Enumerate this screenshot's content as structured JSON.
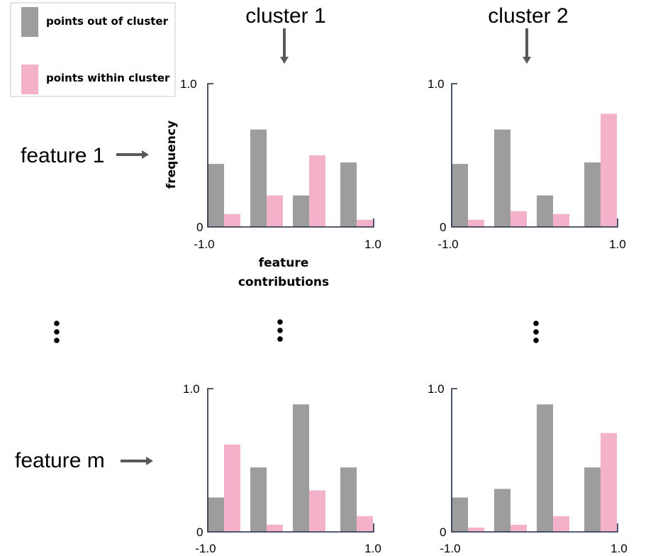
{
  "colors": {
    "out": "#9d9d9d",
    "within": "#f4b1ca"
  },
  "legend": {
    "out_label": "points out of cluster",
    "within_label": "points within cluster"
  },
  "columns": [
    "cluster 1",
    "cluster 2"
  ],
  "rows": [
    "feature 1",
    "feature m"
  ],
  "axis": {
    "ylabel": "frequency",
    "xlabel_line1": "feature",
    "xlabel_line2": "contributions"
  },
  "ellipsis_note": "⋮",
  "chart_data": [
    {
      "type": "bar",
      "row": "feature 1",
      "column": "cluster 1",
      "xlabel": "feature contributions",
      "ylabel": "frequency",
      "xlim": [
        -1.0,
        1.0
      ],
      "ylim": [
        0,
        1.0
      ],
      "x_tick_labels": [
        "-1.0",
        "1.0"
      ],
      "y_tick_labels": [
        "0",
        "1.0"
      ],
      "series": [
        {
          "name": "points out of cluster",
          "values": [
            0.44,
            0.68,
            0.22,
            0.45
          ]
        },
        {
          "name": "points within cluster",
          "values": [
            0.09,
            0.22,
            0.5,
            0.05
          ]
        }
      ]
    },
    {
      "type": "bar",
      "row": "feature 1",
      "column": "cluster 2",
      "xlim": [
        -1.0,
        1.0
      ],
      "ylim": [
        0,
        1.0
      ],
      "x_tick_labels": [
        "-1.0",
        "1.0"
      ],
      "y_tick_labels": [
        "0",
        "1.0"
      ],
      "series": [
        {
          "name": "points out of cluster",
          "values": [
            0.44,
            0.68,
            0.22,
            0.45
          ]
        },
        {
          "name": "points within cluster",
          "values": [
            0.05,
            0.11,
            0.09,
            0.79
          ]
        }
      ]
    },
    {
      "type": "bar",
      "row": "feature m",
      "column": "cluster 1",
      "xlim": [
        -1.0,
        1.0
      ],
      "ylim": [
        0,
        1.0
      ],
      "x_tick_labels": [
        "-1.0",
        "1.0"
      ],
      "y_tick_labels": [
        "0",
        "1.0"
      ],
      "series": [
        {
          "name": "points out of cluster",
          "values": [
            0.24,
            0.45,
            0.89,
            0.45
          ]
        },
        {
          "name": "points within cluster",
          "values": [
            0.61,
            0.05,
            0.29,
            0.11
          ]
        }
      ]
    },
    {
      "type": "bar",
      "row": "feature m",
      "column": "cluster 2",
      "xlim": [
        -1.0,
        1.0
      ],
      "ylim": [
        0,
        1.0
      ],
      "x_tick_labels": [
        "-1.0",
        "1.0"
      ],
      "y_tick_labels": [
        "0",
        "1.0"
      ],
      "series": [
        {
          "name": "points out of cluster",
          "values": [
            0.24,
            0.3,
            0.89,
            0.45
          ]
        },
        {
          "name": "points within cluster",
          "values": [
            0.03,
            0.05,
            0.11,
            0.69
          ]
        }
      ]
    }
  ]
}
